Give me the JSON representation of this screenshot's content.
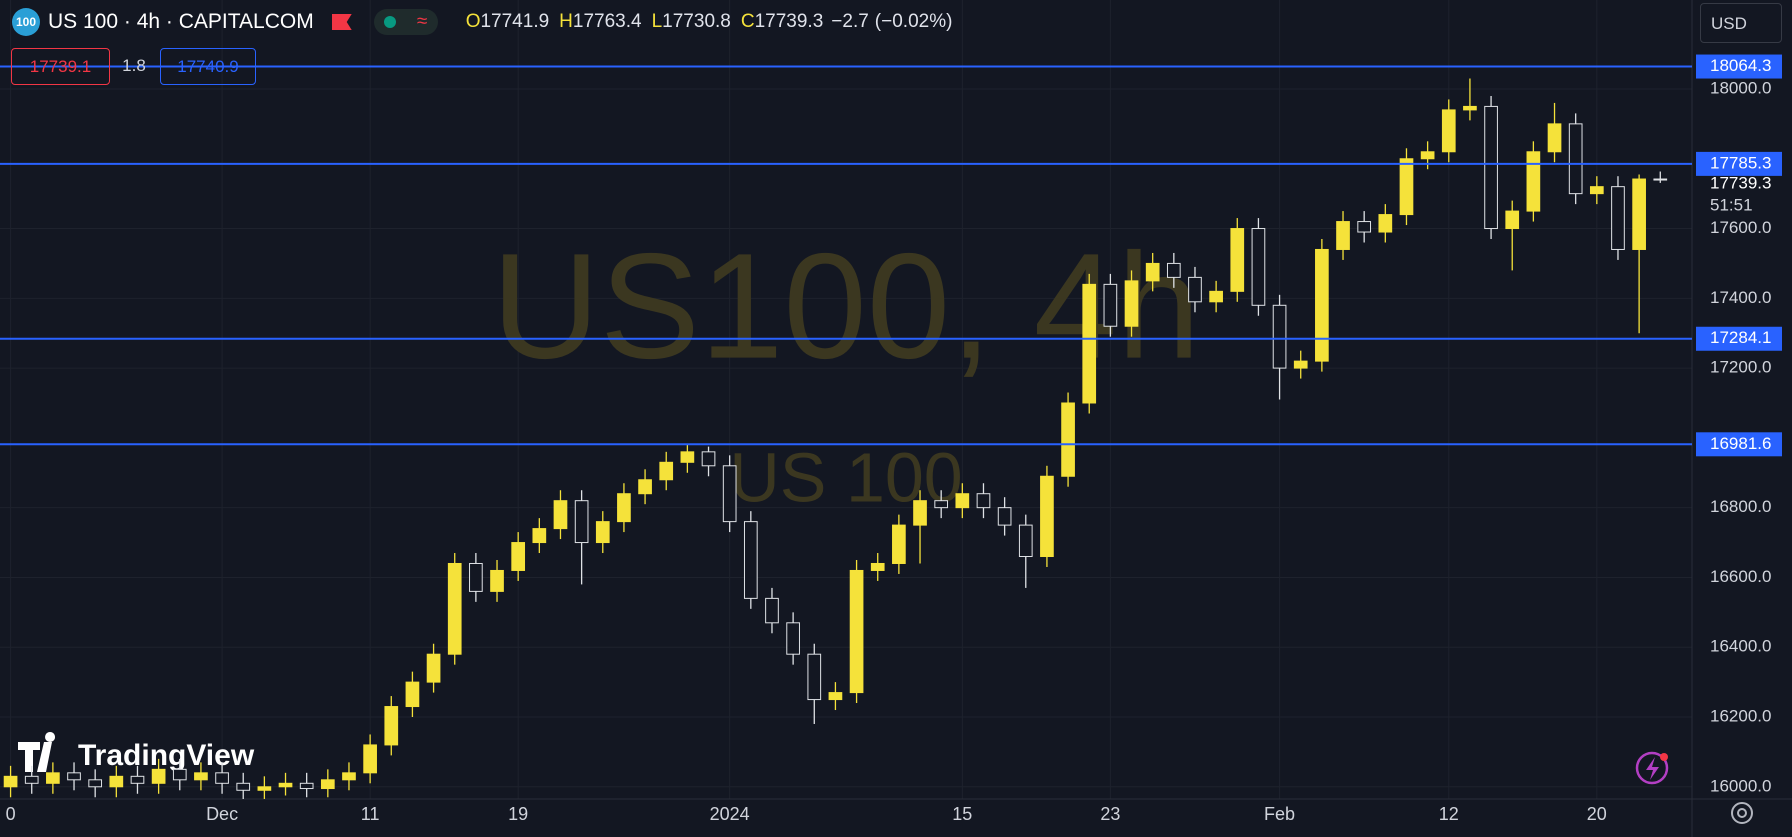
{
  "header": {
    "logo": "100",
    "symbol": "US 100 · 4h · CAPITALCOM",
    "currency": "USD",
    "ohlc_letters": [
      "O",
      "H",
      "L",
      "C"
    ],
    "change": {
      "value": -2.7,
      "label": "−2.7"
    },
    "change_percent": {
      "value": -0.02,
      "label": "(−0.02%)"
    },
    "sell": 17739.1,
    "spread": 1.8,
    "buy": 17740.9,
    "watermark": "US100, 4h",
    "watermark_sub": "US 100",
    "brand": "TradingView"
  },
  "chart_data": {
    "type": "candlestick",
    "up_color": "#f5e23a",
    "down_color": "#dfe2e6",
    "line_color": "#2962ff",
    "grid": true,
    "categories": [
      "0",
      null,
      null,
      null,
      null,
      null,
      null,
      null,
      null,
      null,
      "Dec",
      null,
      null,
      null,
      null,
      null,
      null,
      "11",
      null,
      null,
      null,
      null,
      null,
      null,
      "19",
      null,
      null,
      null,
      null,
      null,
      null,
      null,
      null,
      null,
      "2024",
      null,
      null,
      null,
      null,
      null,
      null,
      null,
      null,
      null,
      null,
      "15",
      null,
      null,
      null,
      null,
      null,
      null,
      "23",
      null,
      null,
      null,
      null,
      null,
      null,
      null,
      "Feb",
      null,
      null,
      null,
      null,
      null,
      null,
      null,
      "12",
      null,
      null,
      null,
      null,
      null,
      null,
      "20",
      null,
      null,
      null
    ],
    "open": [
      16000,
      16030,
      16010,
      16040,
      16020,
      16000,
      16030,
      16010,
      16050,
      16020,
      16040,
      16010,
      15990,
      16000,
      16010,
      15995,
      16020,
      16040,
      16120,
      16230,
      16300,
      16380,
      16640,
      16560,
      16620,
      16700,
      16740,
      16820,
      16700,
      16760,
      16840,
      16880,
      16930,
      16960,
      16920,
      16760,
      16540,
      16470,
      16380,
      16250,
      16270,
      16620,
      16640,
      16750,
      16820,
      16800,
      16840,
      16800,
      16750,
      16660,
      16890,
      17100,
      17440,
      17320,
      17450,
      17500,
      17460,
      17390,
      17420,
      17600,
      17380,
      17200,
      17220,
      17540,
      17620,
      17590,
      17640,
      17800,
      17820,
      17940,
      17950,
      17600,
      17650,
      17820,
      17900,
      17700,
      17720,
      17540,
      17741.9
    ],
    "high": [
      16060,
      16060,
      16070,
      16070,
      16050,
      16060,
      16060,
      16080,
      16080,
      16070,
      16070,
      16040,
      16030,
      16040,
      16040,
      16050,
      16070,
      16150,
      16260,
      16330,
      16410,
      16670,
      16670,
      16650,
      16730,
      16770,
      16850,
      16850,
      16790,
      16870,
      16910,
      16960,
      16980,
      16975,
      16950,
      16790,
      16570,
      16500,
      16410,
      16300,
      16650,
      16670,
      16780,
      16850,
      16850,
      16870,
      16870,
      16830,
      16780,
      16920,
      17130,
      17470,
      17470,
      17480,
      17530,
      17530,
      17490,
      17450,
      17630,
      17630,
      17410,
      17250,
      17570,
      17650,
      17650,
      17670,
      17830,
      17850,
      17970,
      18030,
      17980,
      17680,
      17850,
      17960,
      17930,
      17750,
      17750,
      17755,
      17763.4
    ],
    "low": [
      15970,
      15980,
      15980,
      15990,
      15970,
      15970,
      15980,
      15980,
      15990,
      15990,
      15980,
      15965,
      15965,
      15975,
      15970,
      15970,
      15990,
      16010,
      16090,
      16200,
      16270,
      16350,
      16530,
      16530,
      16590,
      16670,
      16710,
      16580,
      16670,
      16730,
      16810,
      16850,
      16900,
      16890,
      16730,
      16510,
      16440,
      16350,
      16180,
      16220,
      16240,
      16590,
      16610,
      16640,
      16770,
      16770,
      16770,
      16720,
      16570,
      16630,
      16860,
      17070,
      17290,
      17290,
      17420,
      17430,
      17360,
      17360,
      17390,
      17350,
      17110,
      17170,
      17190,
      17510,
      17560,
      17560,
      17610,
      17770,
      17790,
      17910,
      17570,
      17480,
      17620,
      17790,
      17670,
      17670,
      17510,
      17300,
      17730.8
    ],
    "close": [
      16030,
      16010,
      16040,
      16020,
      16000,
      16030,
      16010,
      16050,
      16020,
      16040,
      16010,
      15990,
      16000,
      16010,
      15995,
      16020,
      16040,
      16120,
      16230,
      16300,
      16380,
      16640,
      16560,
      16620,
      16700,
      16740,
      16820,
      16700,
      16760,
      16840,
      16880,
      16930,
      16960,
      16920,
      16760,
      16540,
      16470,
      16380,
      16250,
      16270,
      16620,
      16640,
      16750,
      16820,
      16800,
      16840,
      16800,
      16750,
      16660,
      16890,
      17100,
      17440,
      17320,
      17450,
      17500,
      17460,
      17390,
      17420,
      17600,
      17380,
      17200,
      17220,
      17540,
      17620,
      17590,
      17640,
      17800,
      17820,
      17940,
      17950,
      17600,
      17650,
      17820,
      17900,
      17700,
      17720,
      17540,
      17741.9,
      17739.3
    ],
    "hlines": [
      18064.3,
      17785.3,
      17284.1,
      16981.6
    ],
    "countdown": "51:51",
    "ylim": [
      15965,
      18255
    ],
    "yticks": [
      {
        "value": 16000,
        "label": "16000.0"
      },
      {
        "value": 16200,
        "label": "16200.0"
      },
      {
        "value": 16400,
        "label": "16400.0"
      },
      {
        "value": 16600,
        "label": "16600.0"
      },
      {
        "value": 16800,
        "label": "16800.0"
      },
      {
        "value": 17200,
        "label": "17200.0"
      },
      {
        "value": 17400,
        "label": "17400.0"
      },
      {
        "value": 17600,
        "label": "17600.0"
      },
      {
        "value": 18000,
        "label": "18000.0"
      }
    ]
  }
}
